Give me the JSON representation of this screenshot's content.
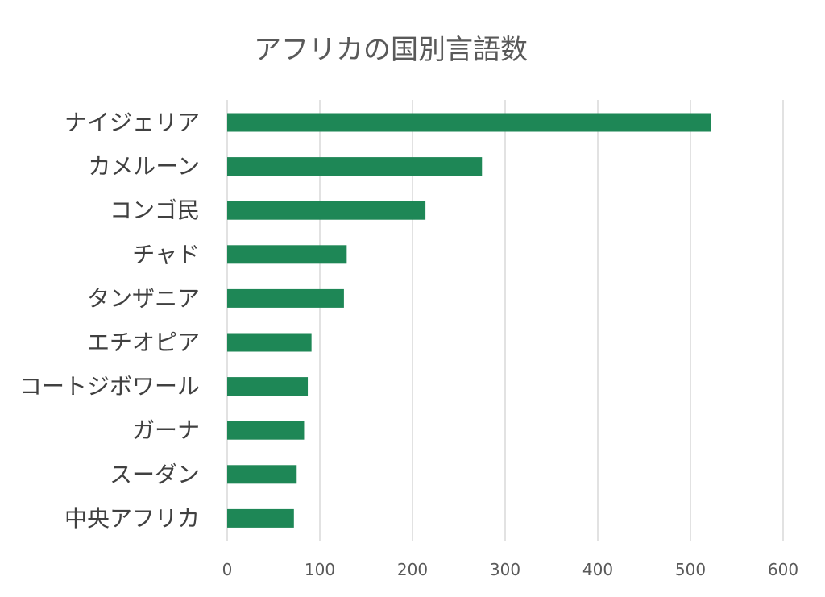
{
  "chart_data": {
    "type": "bar",
    "orientation": "horizontal",
    "title": "アフリカの国別言語数",
    "categories": [
      "ナイジェリア",
      "カメルーン",
      "コンゴ民",
      "チャド",
      "タンザニア",
      "エチオピア",
      "コートジボワール",
      "ガーナ",
      "スーダン",
      "中央アフリカ"
    ],
    "values": [
      522,
      275,
      214,
      129,
      126,
      91,
      87,
      83,
      75,
      72
    ],
    "xlim": [
      0,
      600
    ],
    "xticks": [
      0,
      100,
      200,
      300,
      400,
      500,
      600
    ],
    "xlabel": "",
    "ylabel": "",
    "grid": "vertical",
    "legend": "none",
    "bar_color": "#1e8756",
    "label_color": "#404040",
    "tick_color": "#595959",
    "grid_color": "#d9d9d9"
  }
}
